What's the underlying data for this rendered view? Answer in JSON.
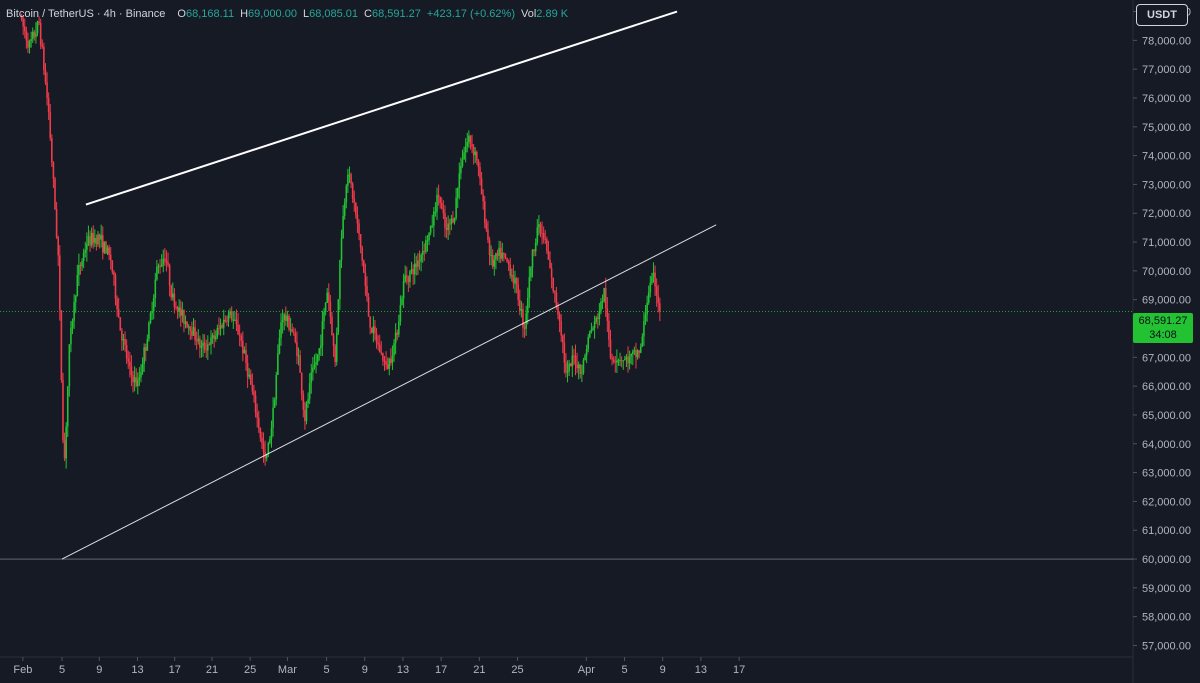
{
  "legend": {
    "symbol": "Bitcoin / TetherUS · 4h · Binance",
    "open_label": "O",
    "open": "68,168.11",
    "high_label": "H",
    "high": "69,000.00",
    "low_label": "L",
    "low": "68,085.01",
    "close_label": "C",
    "close": "68,591.27",
    "change": "+423.17 (+0.62%)",
    "vol_label": "Vol",
    "vol": "2.89 K"
  },
  "currency_button": "USDT",
  "price_tag": {
    "price": "68,591.27",
    "countdown": "34:08"
  },
  "colors": {
    "background": "#161a25",
    "up": "#22c233",
    "down": "#ef3b4a",
    "trendline": "#ffffff",
    "last_price": "#22c233",
    "axis_text": "#b2b5be"
  },
  "chart_data": {
    "type": "candlestick",
    "timeframe": "4h",
    "y_axis": {
      "min": 56600,
      "max": 79400,
      "step": 1000,
      "tick_labels": [
        "57,000.00",
        "58,000.00",
        "59,000.00",
        "60,000.00",
        "61,000.00",
        "62,000.00",
        "63,000.00",
        "64,000.00",
        "65,000.00",
        "66,000.00",
        "67,000.00",
        "68,000.00",
        "69,000.00",
        "70,000.00",
        "71,000.00",
        "72,000.00",
        "73,000.00",
        "74,000.00",
        "75,000.00",
        "76,000.00",
        "77,000.00",
        "78,000.00",
        "79,000.00"
      ],
      "position": "right"
    },
    "x_axis": {
      "day_min": 0,
      "day_max": 47.3,
      "ticks": [
        {
          "day": 0.3,
          "label": "Feb"
        },
        {
          "day": 4.4,
          "label": "5"
        },
        {
          "day": 8.3,
          "label": "9"
        },
        {
          "day": 12.3,
          "label": "13"
        },
        {
          "day": 16.2,
          "label": "17"
        },
        {
          "day": 20.1,
          "label": "21"
        },
        {
          "day": 24.1,
          "label": "25"
        },
        {
          "day": 28.0,
          "label": "Mar"
        },
        {
          "day": 32.1,
          "label": "5"
        },
        {
          "day": 36.1,
          "label": "9"
        },
        {
          "day": 40.1,
          "label": "13"
        },
        {
          "day": 44.1,
          "label": "17"
        },
        {
          "day": 48.1,
          "label": "21"
        },
        {
          "day": 52.1,
          "label": "25"
        },
        {
          "day": 59.3,
          "label": "Apr"
        },
        {
          "day": 63.3,
          "label": "5"
        },
        {
          "day": 67.3,
          "label": "9"
        },
        {
          "day": 71.3,
          "label": "13"
        },
        {
          "day": 75.3,
          "label": "17"
        }
      ]
    },
    "close_path": [
      [
        0,
        78800
      ],
      [
        1.0,
        77800
      ],
      [
        2.0,
        78600
      ],
      [
        3.0,
        75500
      ],
      [
        4.0,
        70500
      ],
      [
        4.6,
        63000
      ],
      [
        5.2,
        67500
      ],
      [
        6.0,
        69800
      ],
      [
        7.0,
        71000
      ],
      [
        8.2,
        71200
      ],
      [
        9.5,
        70400
      ],
      [
        10.5,
        68000
      ],
      [
        11.5,
        66500
      ],
      [
        12.3,
        66000
      ],
      [
        13.5,
        68000
      ],
      [
        14.3,
        70000
      ],
      [
        15.2,
        70600
      ],
      [
        16.0,
        69000
      ],
      [
        17.0,
        68400
      ],
      [
        18.0,
        68000
      ],
      [
        19.0,
        67300
      ],
      [
        20.2,
        67600
      ],
      [
        21.2,
        68200
      ],
      [
        22.0,
        68500
      ],
      [
        23.0,
        67800
      ],
      [
        24.0,
        66300
      ],
      [
        25.0,
        64600
      ],
      [
        25.7,
        63300
      ],
      [
        26.4,
        64800
      ],
      [
        27.4,
        68500
      ],
      [
        28.3,
        68100
      ],
      [
        29.1,
        67200
      ],
      [
        29.8,
        64800
      ],
      [
        30.5,
        66300
      ],
      [
        31.3,
        67200
      ],
      [
        32.2,
        69400
      ],
      [
        33.0,
        66800
      ],
      [
        33.6,
        71000
      ],
      [
        34.3,
        73600
      ],
      [
        35.0,
        72300
      ],
      [
        35.8,
        70500
      ],
      [
        36.6,
        68200
      ],
      [
        37.5,
        67400
      ],
      [
        38.4,
        66600
      ],
      [
        39.3,
        67600
      ],
      [
        40.3,
        69800
      ],
      [
        41.2,
        70000
      ],
      [
        42.0,
        70600
      ],
      [
        43.0,
        71400
      ],
      [
        43.8,
        72700
      ],
      [
        44.6,
        71300
      ],
      [
        45.5,
        72000
      ],
      [
        46.2,
        73900
      ],
      [
        47.0,
        74600
      ],
      [
        47.8,
        74000
      ],
      [
        48.6,
        72000
      ],
      [
        49.4,
        70200
      ],
      [
        50.3,
        70600
      ],
      [
        51.2,
        70200
      ],
      [
        52.0,
        69400
      ],
      [
        52.8,
        68000
      ],
      [
        53.5,
        70200
      ],
      [
        54.2,
        71600
      ],
      [
        55.0,
        71000
      ],
      [
        55.8,
        69400
      ],
      [
        56.6,
        68200
      ],
      [
        57.2,
        66300
      ],
      [
        58.0,
        67000
      ],
      [
        58.8,
        66500
      ],
      [
        59.6,
        67800
      ],
      [
        60.4,
        68300
      ],
      [
        61.2,
        69300
      ],
      [
        61.8,
        67000
      ],
      [
        62.6,
        67000
      ],
      [
        63.4,
        66900
      ],
      [
        64.2,
        67000
      ],
      [
        65.0,
        67300
      ],
      [
        65.8,
        69300
      ],
      [
        66.4,
        69800
      ],
      [
        67.0,
        68590
      ]
    ],
    "trendlines": [
      {
        "from": {
          "day": 6.9,
          "price": 72300
        },
        "to": {
          "day": 68.8,
          "price": 79000
        },
        "style": "thick"
      },
      {
        "from": {
          "day": 4.4,
          "price": 60000
        },
        "to": {
          "day": 72.9,
          "price": 71600
        },
        "style": "thin"
      }
    ],
    "horizontal_lines": [
      {
        "price": 60000,
        "style": "thin"
      },
      {
        "price": 68591.27,
        "style": "dotted",
        "label": "last price"
      }
    ],
    "last_price": 68591.27
  }
}
